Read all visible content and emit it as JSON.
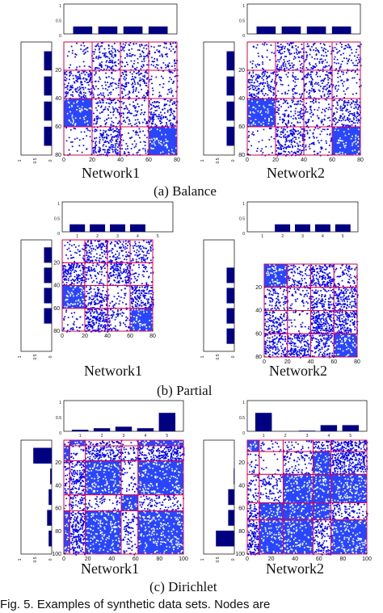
{
  "colors": {
    "bar": "#000080",
    "dot": "#0000ff",
    "dense_fill": "#1e3cff",
    "frame": "#000000",
    "block_border": "#e0004c",
    "label": "#111111"
  },
  "figure_caption": "Fig. 5.   Examples of synthetic data sets. Nodes are",
  "panels": [
    {
      "caption": "(a) Balance",
      "networks": [
        {
          "label": "Network1",
          "n": 80,
          "ticks": [
            0,
            20,
            40,
            60,
            80
          ],
          "top_bars": [
            0.25,
            0.25,
            0.25,
            0.25
          ],
          "side_bars": [
            0.25,
            0.25,
            0.25,
            0.25
          ],
          "side_axis_ticks": [
            "1",
            "0.5",
            "0"
          ],
          "top_axis_ticks": [
            "1",
            "0.5",
            "0"
          ],
          "blocks": [
            0,
            20,
            40,
            60,
            80
          ],
          "density": [
            [
              0.15,
              0.55,
              0.4,
              0.35
            ],
            [
              0.7,
              0.3,
              0.6,
              0.2
            ],
            [
              0.9,
              0.5,
              0.35,
              0.7
            ],
            [
              0.15,
              0.85,
              0.3,
              0.9
            ]
          ]
        },
        {
          "label": "Network2",
          "n": 80,
          "ticks": [
            0,
            20,
            40,
            60,
            80
          ],
          "top_bars": [
            0.25,
            0.25,
            0.25,
            0.25
          ],
          "side_bars": [
            0.25,
            0.25,
            0.25,
            0.25
          ],
          "side_axis_ticks": [
            "1",
            "0.5",
            "0"
          ],
          "top_axis_ticks": [
            "1",
            "0.5",
            "0"
          ],
          "blocks": [
            0,
            20,
            40,
            60,
            80
          ],
          "density": [
            [
              0.15,
              0.55,
              0.4,
              0.35
            ],
            [
              0.7,
              0.3,
              0.6,
              0.2
            ],
            [
              0.9,
              0.5,
              0.35,
              0.7
            ],
            [
              0.15,
              0.85,
              0.3,
              0.9
            ]
          ]
        }
      ]
    },
    {
      "caption": "(b) Partial",
      "networks": [
        {
          "label": "Network1",
          "n": 80,
          "ticks": [
            0,
            20,
            40,
            60,
            80
          ],
          "top_bars": [
            0.25,
            0.25,
            0.25,
            0.25,
            0
          ],
          "side_bars": [
            0.25,
            0.25,
            0.25,
            0.25,
            0
          ],
          "side_axis_ticks": [
            "1",
            "0.5",
            "0"
          ],
          "top_axis_ticks": [
            "1",
            "0.5",
            "0"
          ],
          "top_tick_labels": [
            "1",
            "2",
            "3",
            "4",
            "5"
          ],
          "blocks": [
            0,
            20,
            40,
            60,
            80
          ],
          "density": [
            [
              0.15,
              0.55,
              0.4,
              0.35
            ],
            [
              0.7,
              0.3,
              0.6,
              0.2
            ],
            [
              0.9,
              0.5,
              0.15,
              0.7
            ],
            [
              0.15,
              0.85,
              0.3,
              0.9
            ]
          ]
        },
        {
          "label": "Network2",
          "n": 80,
          "ticks": [
            0,
            20,
            40,
            60,
            80
          ],
          "top_bars": [
            0,
            0.25,
            0.25,
            0.25,
            0.25
          ],
          "side_bars": [
            0,
            0.25,
            0.25,
            0.25,
            0.25
          ],
          "side_axis_ticks": [
            "1",
            "0.5",
            "0"
          ],
          "top_axis_ticks": [
            "1",
            "0.5",
            "0"
          ],
          "top_tick_labels": [
            "1",
            "2",
            "3",
            "4",
            "5"
          ],
          "blocks": [
            0,
            20,
            40,
            60,
            80
          ],
          "density": [
            [
              0.9,
              0.4,
              0.7,
              0.3
            ],
            [
              0.4,
              0.2,
              0.5,
              0.6
            ],
            [
              0.6,
              0.15,
              0.85,
              0.7
            ],
            [
              0.55,
              0.7,
              0.5,
              0.9
            ]
          ]
        }
      ]
    },
    {
      "caption": "(c) Dirichlet",
      "networks": [
        {
          "label": "Network1",
          "n": 100,
          "ticks": [
            0,
            20,
            40,
            60,
            80,
            100
          ],
          "top_bars": [
            0.05,
            0.1,
            0.15,
            0.1,
            0.6
          ],
          "side_bars": [
            0.6,
            0.05,
            0.1,
            0.15,
            0.1
          ],
          "side_axis_ticks": [
            "1",
            "0.5",
            "0"
          ],
          "top_axis_ticks": [
            "1",
            "0.5",
            "0"
          ],
          "top_tick_labels": [
            "1",
            "2",
            "3",
            "4",
            "5"
          ],
          "blocks": [
            0,
            5,
            18,
            48,
            62,
            100
          ],
          "density": [
            [
              0.3,
              0.9,
              0.5,
              0.1,
              0.95
            ],
            [
              0.9,
              0.2,
              0.7,
              0.4,
              0.8
            ],
            [
              0.5,
              0.7,
              0.95,
              0.2,
              0.9
            ],
            [
              0.1,
              0.4,
              0.2,
              0.9,
              0.3
            ],
            [
              0.95,
              0.8,
              0.9,
              0.3,
              0.9
            ]
          ]
        },
        {
          "label": "Network2",
          "n": 100,
          "ticks": [
            0,
            20,
            40,
            60,
            80,
            100
          ],
          "top_bars": [
            0.6,
            0.0,
            0.02,
            0.2,
            0.2
          ],
          "side_bars": [
            0.0,
            0.02,
            0.2,
            0.2,
            0.6
          ],
          "side_axis_ticks": [
            "1",
            "0.5",
            "0"
          ],
          "top_axis_ticks": [
            "1",
            "0.5",
            "0"
          ],
          "top_tick_labels": [
            "1",
            "2",
            "3",
            "4",
            "5"
          ],
          "blocks": [
            0,
            10,
            30,
            55,
            70,
            100
          ],
          "density": [
            [
              0.9,
              0.2,
              0.2,
              0.6,
              0.8
            ],
            [
              0.2,
              0.05,
              0.3,
              0.9,
              0.8
            ],
            [
              0.3,
              0.3,
              0.95,
              0.9,
              0.95
            ],
            [
              0.7,
              0.9,
              0.9,
              0.95,
              0.4
            ],
            [
              0.8,
              0.9,
              0.95,
              0.5,
              0.95
            ]
          ]
        }
      ]
    }
  ]
}
